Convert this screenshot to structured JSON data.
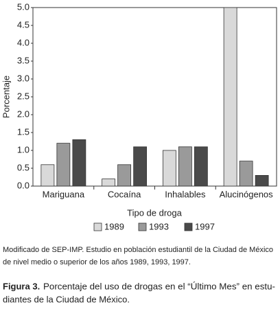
{
  "chart_data": {
    "type": "bar",
    "x_label": "Tipo de droga",
    "y_label": "Porcentaje",
    "categories": [
      "Mariguana",
      "Cocaína",
      "Inhalables",
      "Alucinógenos"
    ],
    "series": [
      {
        "name": "1989",
        "color": "#d9d9d9",
        "values": [
          0.6,
          0.2,
          1.0,
          5.0
        ]
      },
      {
        "name": "1993",
        "color": "#9a9a9a",
        "values": [
          1.2,
          0.6,
          1.1,
          0.7
        ]
      },
      {
        "name": "1997",
        "color": "#4a4a4a",
        "values": [
          1.3,
          1.1,
          1.1,
          0.3
        ]
      }
    ],
    "ylim": [
      0,
      5
    ],
    "yticks": [
      {
        "value": 0,
        "label": "0.0"
      },
      {
        "value": 0.5,
        "label": "0.5"
      },
      {
        "value": 1,
        "label": "1.0"
      },
      {
        "value": 1.5,
        "label": "1.5"
      },
      {
        "value": 2,
        "label": "2.0"
      },
      {
        "value": 2.5,
        "label": "2.5"
      },
      {
        "value": 3,
        "label": "3.0"
      },
      {
        "value": 3.5,
        "label": "3.5"
      },
      {
        "value": 4,
        "label": "4.0"
      },
      {
        "value": 4.5,
        "label": "4.5"
      },
      {
        "value": 5,
        "label": "5.0"
      }
    ],
    "grid": false,
    "legend": "bottom"
  },
  "note": {
    "lines": [
      "Modificado de SEP-IMP. Estudio en población estudiantil de la Ciudad de México",
      "de nivel medio o superior de los años 1989, 1993, 1997."
    ]
  },
  "caption": {
    "label": "Figura 3.",
    "lines": [
      "Porcentaje del uso de drogas en el “Último Mes” en estu-",
      "diantes de la Ciudad de México."
    ]
  }
}
